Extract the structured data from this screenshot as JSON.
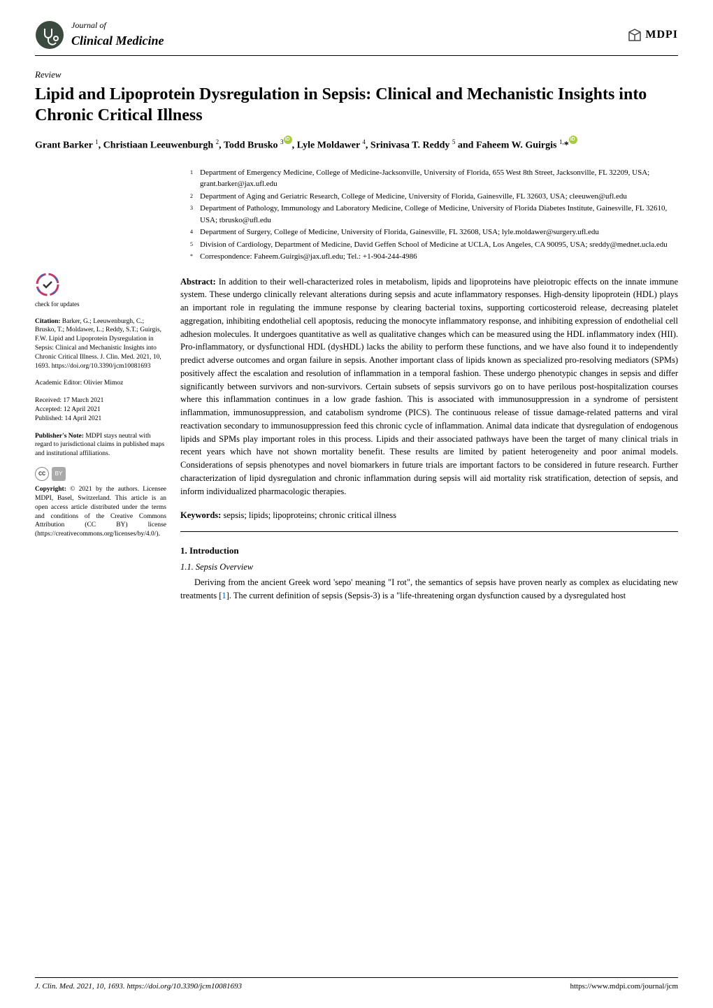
{
  "journal": {
    "of": "Journal of",
    "name": "Clinical Medicine"
  },
  "publisher_logo": "MDPI",
  "article_type": "Review",
  "title": "Lipid and Lipoprotein Dysregulation in Sepsis: Clinical and Mechanistic Insights into Chronic Critical Illness",
  "authors_line1": "Grant Barker ",
  "authors_sup1": "1",
  "authors_line2": ", Christiaan Leeuwenburgh ",
  "authors_sup2": "2",
  "authors_line3": ", Todd Brusko ",
  "authors_sup3": "3",
  "authors_line4": ", Lyle Moldawer ",
  "authors_sup4": "4",
  "authors_line5": ", Srinivasa T. Reddy ",
  "authors_sup5": "5",
  "authors_line6": " and Faheem W. Guirgis ",
  "authors_sup6": "1,",
  "authors_star": "*",
  "affiliations": [
    {
      "num": "1",
      "text": "Department of Emergency Medicine, College of Medicine-Jacksonville, University of Florida, 655 West 8th Street, Jacksonville, FL 32209, USA; grant.barker@jax.ufl.edu"
    },
    {
      "num": "2",
      "text": "Department of Aging and Geriatric Research, College of Medicine, University of Florida, Gainesville, FL 32603, USA; cleeuwen@ufl.edu"
    },
    {
      "num": "3",
      "text": "Department of Pathology, Immunology and Laboratory Medicine, College of Medicine, University of Florida Diabetes Institute, Gainesville, FL 32610, USA; tbrusko@ufl.edu"
    },
    {
      "num": "4",
      "text": "Department of Surgery, College of Medicine, University of Florida, Gainesville, FL 32608, USA; lyle.moldawer@surgery.ufl.edu"
    },
    {
      "num": "5",
      "text": "Division of Cardiology, Department of Medicine, David Geffen School of Medicine at UCLA, Los Angeles, CA 90095, USA; sreddy@mednet.ucla.edu"
    },
    {
      "num": "*",
      "text": "Correspondence: Faheem.Guirgis@jax.ufl.edu; Tel.: +1-904-244-4986"
    }
  ],
  "abstract_label": "Abstract:",
  "abstract": " In addition to their well-characterized roles in metabolism, lipids and lipoproteins have pleiotropic effects on the innate immune system. These undergo clinically relevant alterations during sepsis and acute inflammatory responses. High-density lipoprotein (HDL) plays an important role in regulating the immune response by clearing bacterial toxins, supporting corticosteroid release, decreasing platelet aggregation, inhibiting endothelial cell apoptosis, reducing the monocyte inflammatory response, and inhibiting expression of endothelial cell adhesion molecules. It undergoes quantitative as well as qualitative changes which can be measured using the HDL inflammatory index (HII). Pro-inflammatory, or dysfunctional HDL (dysHDL) lacks the ability to perform these functions, and we have also found it to independently predict adverse outcomes and organ failure in sepsis. Another important class of lipids known as specialized pro-resolving mediators (SPMs) positively affect the escalation and resolution of inflammation in a temporal fashion. These undergo phenotypic changes in sepsis and differ significantly between survivors and non-survivors. Certain subsets of sepsis survivors go on to have perilous post-hospitalization courses where this inflammation continues in a low grade fashion. This is associated with immunosuppression in a syndrome of persistent inflammation, immunosuppression, and catabolism syndrome (PICS). The continuous release of tissue damage-related patterns and viral reactivation secondary to immunosuppression feed this chronic cycle of inflammation. Animal data indicate that dysregulation of endogenous lipids and SPMs play important roles in this process. Lipids and their associated pathways have been the target of many clinical trials in recent years which have not shown mortality benefit. These results are limited by patient heterogeneity and poor animal models. Considerations of sepsis phenotypes and novel biomarkers in future trials are important factors to be considered in future research. Further characterization of lipid dysregulation and chronic inflammation during sepsis will aid mortality risk stratification, detection of sepsis, and inform individualized pharmacologic therapies.",
  "keywords_label": "Keywords:",
  "keywords": " sepsis; lipids; lipoproteins; chronic critical illness",
  "section1_num": "1. Introduction",
  "section1_1": "1.1. Sepsis Overview",
  "body_p1_a": "Deriving from the ancient Greek word 'sepo' meaning \"I rot\", the semantics of sepsis have proven nearly as complex as elucidating new treatments [",
  "body_p1_ref": "1",
  "body_p1_b": "]. The current definition of sepsis (Sepsis-3) is a \"life-threatening organ dysfunction caused by a dysregulated host",
  "sidebar": {
    "check_updates": "check for updates",
    "citation_label": "Citation:",
    "citation": " Barker, G.; Leeuwenburgh, C.; Brusko, T.; Moldawer, L.; Reddy, S.T.; Guirgis, F.W. Lipid and Lipoprotein Dysregulation in Sepsis: Clinical and Mechanistic Insights into Chronic Critical Illness. J. Clin. Med. 2021, 10, 1693. https://doi.org/10.3390/jcm10081693",
    "editor_label": "Academic Editor: ",
    "editor": "Olivier Mimoz",
    "received": "Received: 17 March 2021",
    "accepted": "Accepted: 12 April 2021",
    "published": "Published: 14 April 2021",
    "pubnote_label": "Publisher's Note:",
    "pubnote": " MDPI stays neutral with regard to jurisdictional claims in published maps and institutional affiliations.",
    "copyright_label": "Copyright:",
    "copyright": " © 2021 by the authors. Licensee MDPI, Basel, Switzerland. This article is an open access article distributed under the terms and conditions of the Creative Commons Attribution (CC BY) license (https://creativecommons.org/licenses/by/4.0/)."
  },
  "footer": {
    "left": "J. Clin. Med. 2021, 10, 1693. https://doi.org/10.3390/jcm10081693",
    "right": "https://www.mdpi.com/journal/jcm"
  },
  "colors": {
    "orcid": "#a6ce39",
    "link": "#0066cc",
    "mdpi_border": "#444"
  }
}
